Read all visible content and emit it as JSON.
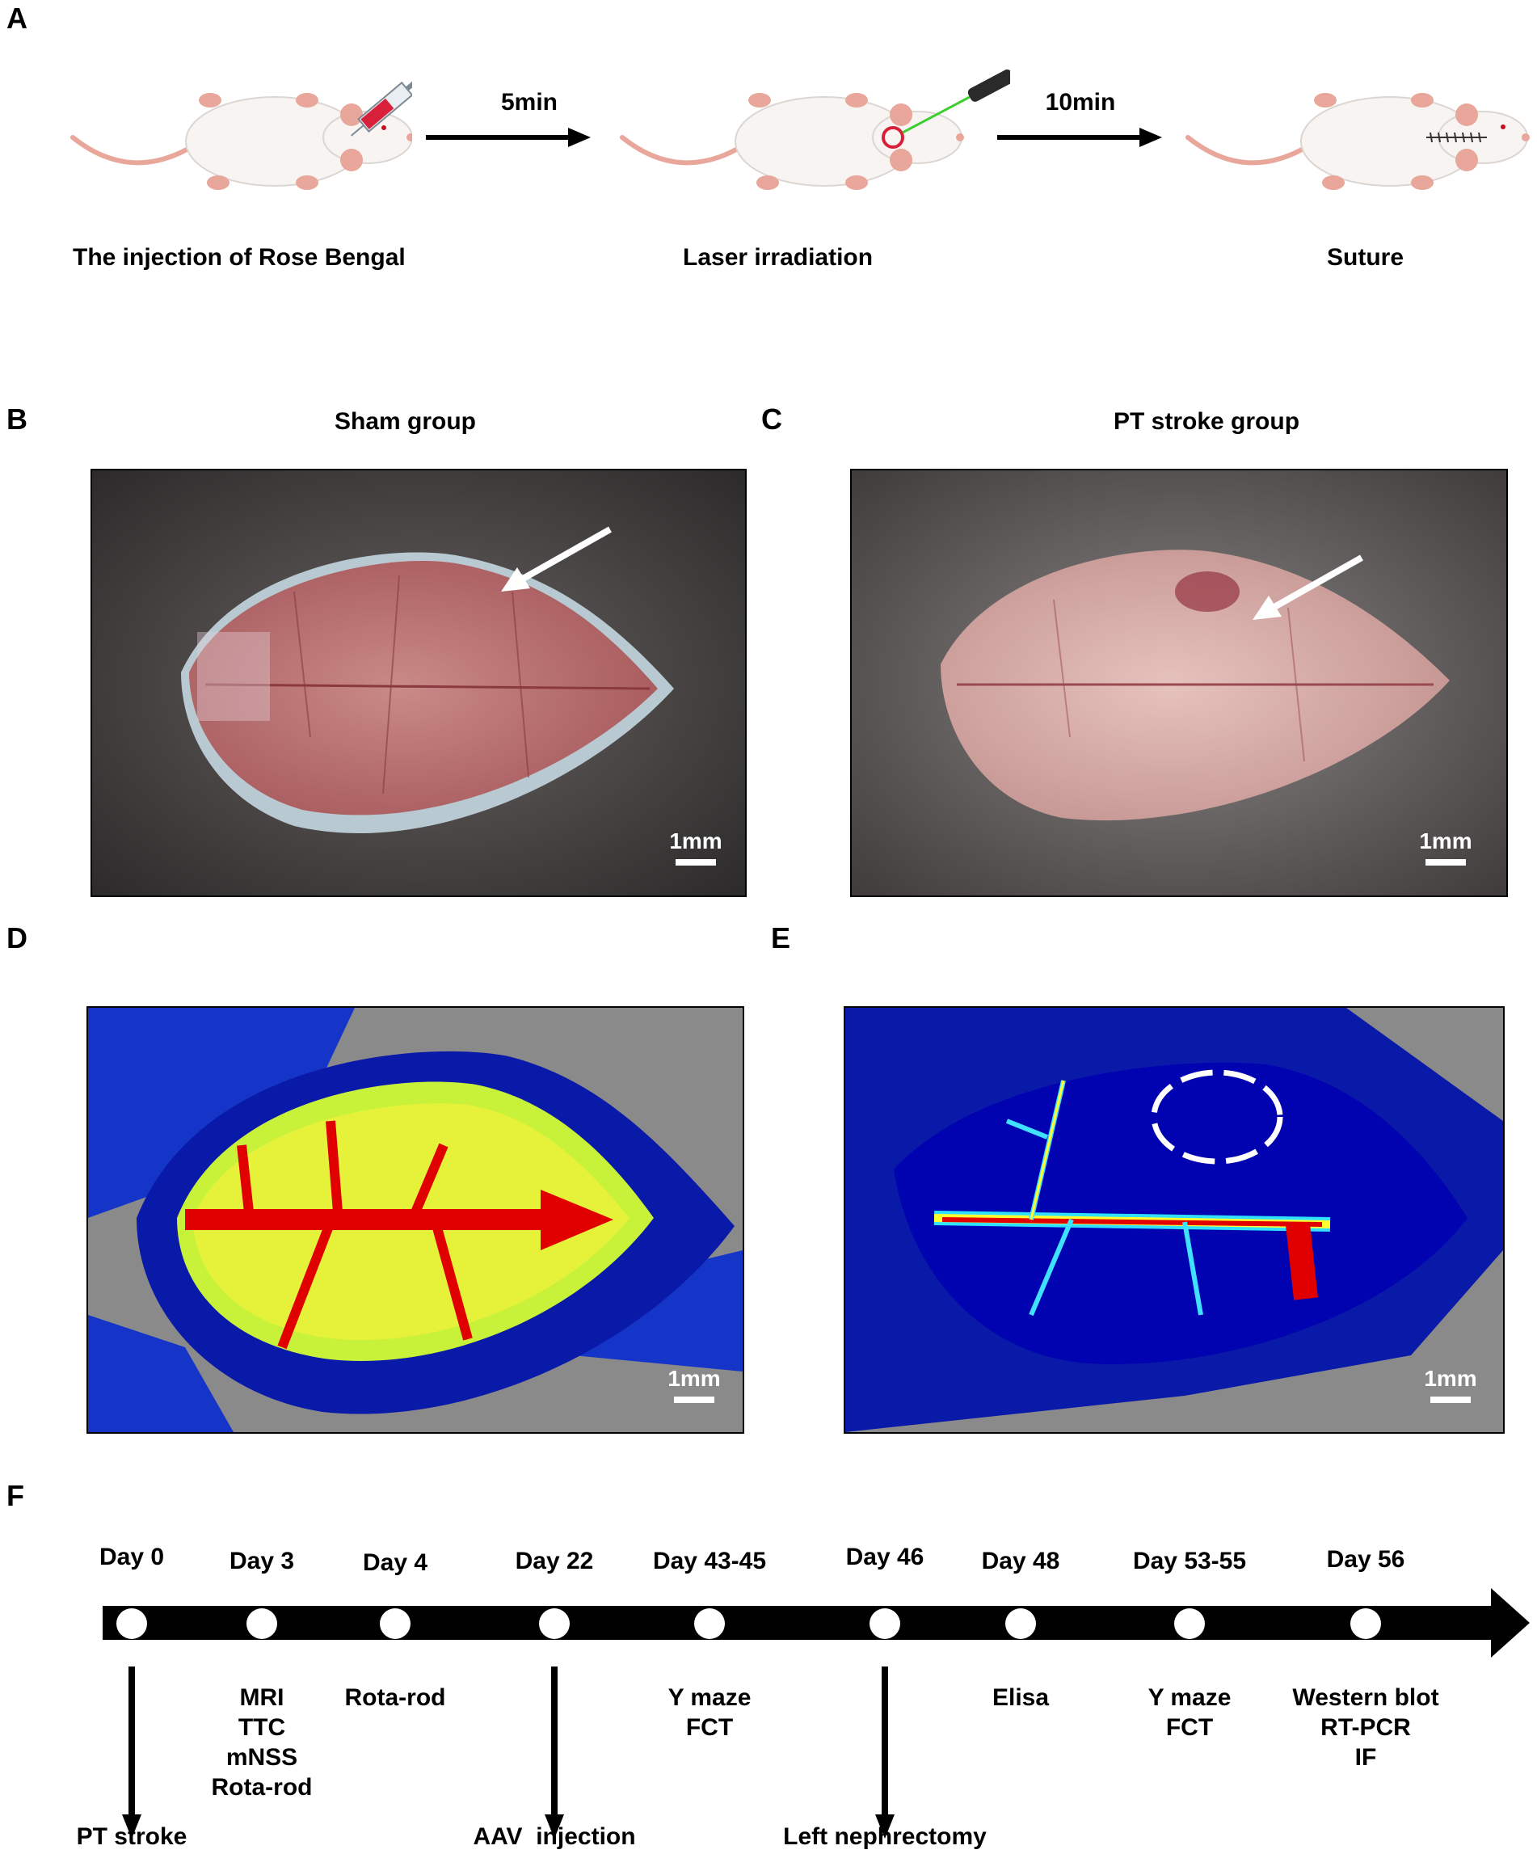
{
  "panels": {
    "A": {
      "label": "A",
      "steps": [
        {
          "caption": "The injection of Rose Bengal",
          "icon": "mouse-syringe-icon"
        },
        {
          "caption": "Laser irradiation",
          "icon": "mouse-laser-icon"
        },
        {
          "caption": "Suture",
          "icon": "mouse-suture-icon"
        }
      ],
      "arrows": [
        {
          "label": "5min"
        },
        {
          "label": "10min"
        }
      ]
    },
    "B": {
      "label": "B",
      "title": "Sham group",
      "scale": "1mm"
    },
    "C": {
      "label": "C",
      "title": "PT stroke group",
      "scale": "1mm"
    },
    "D": {
      "label": "D",
      "scale": "1mm"
    },
    "E": {
      "label": "E",
      "scale": "1mm"
    },
    "F": {
      "label": "F",
      "timeline": [
        {
          "day": "Day 0",
          "below": "",
          "arrow_label": "PT stroke"
        },
        {
          "day": "Day 3",
          "below": "MRI\nTTC\nmNSS\nRota-rod",
          "arrow_label": ""
        },
        {
          "day": "Day 4",
          "below": "Rota-rod",
          "arrow_label": ""
        },
        {
          "day": "Day 22",
          "below": "",
          "arrow_label": "AAV  injection"
        },
        {
          "day": "Day 43-45",
          "below": "Y maze\nFCT",
          "arrow_label": ""
        },
        {
          "day": "Day 46",
          "below": "",
          "arrow_label": "Left nephrectomy"
        },
        {
          "day": "Day 48",
          "below": "Elisa",
          "arrow_label": ""
        },
        {
          "day": "Day 53-55",
          "below": "Y maze\nFCT",
          "arrow_label": ""
        },
        {
          "day": "Day 56",
          "below": "Western blot\nRT-PCR\nIF",
          "arrow_label": ""
        }
      ]
    }
  },
  "colors": {
    "mouse_body": "#f7f4f2",
    "mouse_pink": "#e8a79a",
    "syringe_red": "#d8203a",
    "laser_green": "#3ccf2f",
    "timeline_bar": "#000000",
    "heat_low": "#0a1aa8",
    "heat_mid": "#c8f23a",
    "heat_high": "#e00000",
    "background_grey": "#8a8a8a"
  }
}
